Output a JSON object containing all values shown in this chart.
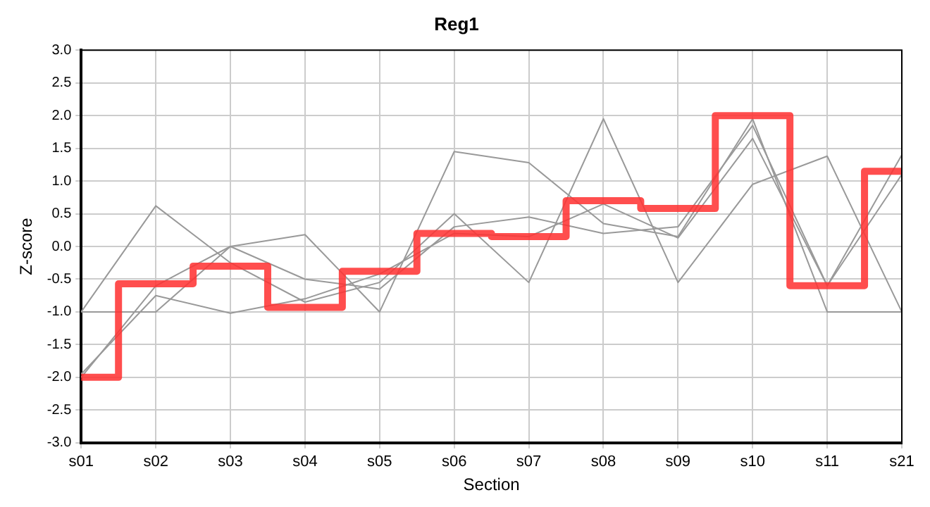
{
  "chart_data": {
    "type": "line",
    "title": "Reg1",
    "xlabel": "Section",
    "ylabel": "Z-score",
    "categories": [
      "s01",
      "s02",
      "s03",
      "s04",
      "s05",
      "s06",
      "s07",
      "s08",
      "s09",
      "s10",
      "s11",
      "s21"
    ],
    "series": [
      {
        "color": "#999999",
        "values": [
          -1.0,
          0.62,
          -0.25,
          -0.85,
          -0.55,
          0.5,
          -0.55,
          1.95,
          -0.55,
          0.95,
          1.38,
          -1.0
        ]
      },
      {
        "color": "#999999",
        "values": [
          -1.0,
          -1.0,
          0.0,
          0.18,
          -1.0,
          1.45,
          1.28,
          0.35,
          0.15,
          1.95,
          -1.0,
          -1.0
        ]
      },
      {
        "color": "#999999",
        "values": [
          -2.0,
          -0.6,
          0.0,
          -0.5,
          -0.65,
          0.3,
          0.45,
          0.2,
          0.3,
          1.85,
          -0.6,
          1.4
        ]
      },
      {
        "color": "#999999",
        "values": [
          -1.95,
          -0.75,
          -1.02,
          -0.8,
          -0.42,
          0.2,
          0.15,
          0.65,
          0.13,
          1.65,
          -0.6,
          1.1
        ]
      },
      {
        "type": "step",
        "color": "#ff3333",
        "values": [
          -2.0,
          -0.57,
          -0.3,
          -0.93,
          -0.38,
          0.2,
          0.15,
          0.7,
          0.58,
          2.0,
          -0.6,
          1.15
        ]
      }
    ],
    "ylim": [
      -3,
      3
    ],
    "yticks": [
      {
        "value": -3,
        "label": "-3.0"
      },
      {
        "value": -2.5,
        "label": "-2.5"
      },
      {
        "value": -2,
        "label": "-2.0"
      },
      {
        "value": -1.5,
        "label": "-1.5"
      },
      {
        "value": -1,
        "label": "-1.0"
      },
      {
        "value": -0.5,
        "label": "-0.5"
      },
      {
        "value": 0,
        "label": "0.0"
      },
      {
        "value": 0.5,
        "label": "0.5"
      },
      {
        "value": 1,
        "label": "1.0"
      },
      {
        "value": 1.5,
        "label": "1.5"
      },
      {
        "value": 2,
        "label": "2.0"
      },
      {
        "value": 2.5,
        "label": "2.5"
      },
      {
        "value": 3,
        "label": "3.0"
      }
    ],
    "grid": true,
    "legend": false,
    "marker": "none",
    "line_style": "solid"
  }
}
